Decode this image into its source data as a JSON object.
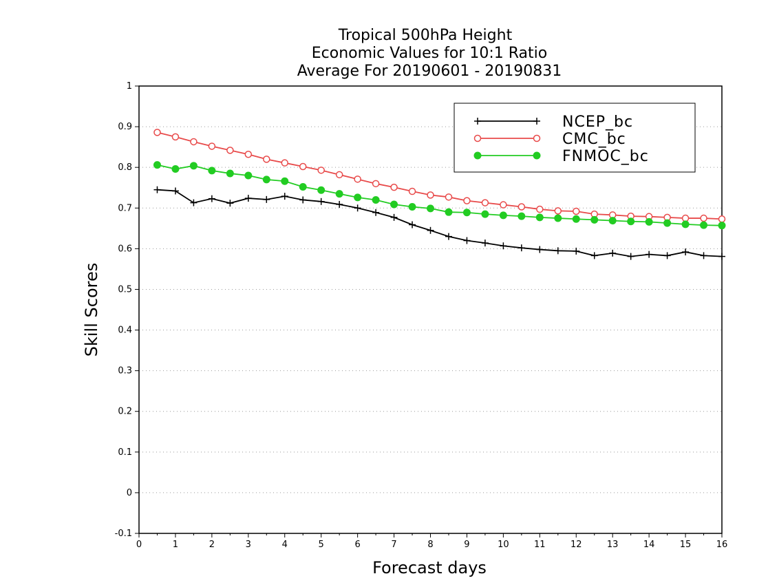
{
  "chart_data": {
    "type": "line",
    "title": [
      "Tropical 500hPa Height",
      "Economic Values for 10:1 Ratio",
      "Average For 20190601 - 20190831"
    ],
    "xlabel": "Forecast days",
    "ylabel": "Skill Scores",
    "xlim": [
      0,
      16
    ],
    "ylim": [
      -0.1,
      1
    ],
    "xticks": [
      "0",
      "1",
      "2",
      "3",
      "4",
      "5",
      "6",
      "7",
      "8",
      "9",
      "10",
      "11",
      "12",
      "13",
      "14",
      "15",
      "16"
    ],
    "yticks": [
      "-0.1",
      "0",
      "0.1",
      "0.2",
      "0.3",
      "0.4",
      "0.5",
      "0.6",
      "0.7",
      "0.8",
      "0.9",
      "1"
    ],
    "grid": true,
    "legend_position": "top-right",
    "x": [
      0.5,
      1,
      1.5,
      2,
      2.5,
      3,
      3.5,
      4,
      4.5,
      5,
      5.5,
      6,
      6.5,
      7,
      7.5,
      8,
      8.5,
      9,
      9.5,
      10,
      10.5,
      11,
      11.5,
      12,
      12.5,
      13,
      13.5,
      14,
      14.5,
      15,
      15.5,
      16
    ],
    "series": [
      {
        "name": "NCEP_bc",
        "color": "#000000",
        "marker": "plus",
        "values": [
          0.745,
          0.742,
          0.713,
          0.723,
          0.712,
          0.724,
          0.721,
          0.729,
          0.72,
          0.716,
          0.709,
          0.7,
          0.689,
          0.677,
          0.659,
          0.645,
          0.63,
          0.62,
          0.614,
          0.607,
          0.602,
          0.598,
          0.595,
          0.594,
          0.583,
          0.589,
          0.581,
          0.586,
          0.583,
          0.592,
          0.583,
          0.581
        ]
      },
      {
        "name": "CMC_bc",
        "color": "#e84a4a",
        "marker": "open-circle",
        "values": [
          0.886,
          0.875,
          0.863,
          0.852,
          0.842,
          0.832,
          0.82,
          0.811,
          0.802,
          0.793,
          0.782,
          0.771,
          0.76,
          0.751,
          0.741,
          0.732,
          0.727,
          0.718,
          0.713,
          0.708,
          0.703,
          0.697,
          0.693,
          0.692,
          0.685,
          0.683,
          0.68,
          0.679,
          0.677,
          0.675,
          0.675,
          0.673
        ]
      },
      {
        "name": "FNMOC_bc",
        "color": "#22cc22",
        "marker": "filled-circle",
        "values": [
          0.806,
          0.796,
          0.804,
          0.792,
          0.785,
          0.78,
          0.77,
          0.766,
          0.752,
          0.744,
          0.735,
          0.726,
          0.72,
          0.709,
          0.703,
          0.699,
          0.69,
          0.689,
          0.685,
          0.682,
          0.68,
          0.677,
          0.675,
          0.673,
          0.671,
          0.669,
          0.667,
          0.666,
          0.663,
          0.66,
          0.658,
          0.657
        ]
      }
    ]
  }
}
